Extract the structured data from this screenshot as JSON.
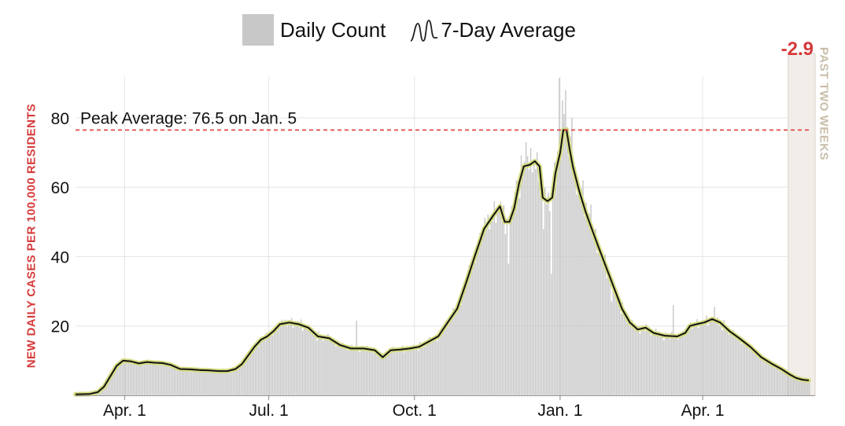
{
  "legend": {
    "daily_label": "Daily Count",
    "average_label": "7-Day Average",
    "daily_color": "#c8c8c8",
    "average_color": "#111111",
    "average_halo_color": "#d6dc84"
  },
  "recent_change": "-2.9",
  "recent_period_label": "PAST TWO WEEKS",
  "colors": {
    "accent_red": "#d63a3a",
    "grid": "#e6e6e6",
    "recent_band": "#f1eeea",
    "recent_band_border": "#d9d2c8"
  },
  "chart_data": {
    "type": "bar",
    "ylabel": "NEW DAILY CASES PER 100,000 RESIDENTS",
    "ylim": [
      0,
      92
    ],
    "y_ticks": [
      20,
      40,
      60,
      80
    ],
    "x_range": [
      "2020-03-01",
      "2021-06-08"
    ],
    "x_ticks": [
      {
        "date": "2020-04-01",
        "label": "Apr. 1"
      },
      {
        "date": "2020-07-01",
        "label": "Jul. 1"
      },
      {
        "date": "2020-10-01",
        "label": "Oct. 1"
      },
      {
        "date": "2021-01-01",
        "label": "Jan. 1"
      },
      {
        "date": "2021-04-01",
        "label": "Apr. 1"
      }
    ],
    "grid": true,
    "legend_position": "top-center",
    "series": [
      {
        "name": "7-Day Average",
        "kind": "line",
        "points": [
          [
            "2020-03-01",
            0.3
          ],
          [
            "2020-03-10",
            0.4
          ],
          [
            "2020-03-15",
            0.9
          ],
          [
            "2020-03-19",
            2.5
          ],
          [
            "2020-03-23",
            5.5
          ],
          [
            "2020-03-27",
            8.5
          ],
          [
            "2020-03-31",
            10.0
          ],
          [
            "2020-04-05",
            9.8
          ],
          [
            "2020-04-10",
            9.2
          ],
          [
            "2020-04-15",
            9.6
          ],
          [
            "2020-04-20",
            9.4
          ],
          [
            "2020-04-25",
            9.3
          ],
          [
            "2020-04-30",
            8.8
          ],
          [
            "2020-05-06",
            7.6
          ],
          [
            "2020-05-12",
            7.5
          ],
          [
            "2020-05-18",
            7.3
          ],
          [
            "2020-05-24",
            7.2
          ],
          [
            "2020-05-30",
            7.0
          ],
          [
            "2020-06-05",
            7.0
          ],
          [
            "2020-06-10",
            7.6
          ],
          [
            "2020-06-14",
            9.0
          ],
          [
            "2020-06-18",
            11.5
          ],
          [
            "2020-06-22",
            14.0
          ],
          [
            "2020-06-26",
            16.0
          ],
          [
            "2020-06-30",
            17.0
          ],
          [
            "2020-07-04",
            18.5
          ],
          [
            "2020-07-08",
            20.5
          ],
          [
            "2020-07-14",
            21.0
          ],
          [
            "2020-07-20",
            20.5
          ],
          [
            "2020-07-26",
            19.5
          ],
          [
            "2020-08-01",
            17.0
          ],
          [
            "2020-08-08",
            16.5
          ],
          [
            "2020-08-15",
            14.5
          ],
          [
            "2020-08-22",
            13.5
          ],
          [
            "2020-08-30",
            13.5
          ],
          [
            "2020-09-06",
            13.0
          ],
          [
            "2020-09-11",
            11.0
          ],
          [
            "2020-09-16",
            13.0
          ],
          [
            "2020-09-22",
            13.2
          ],
          [
            "2020-09-28",
            13.5
          ],
          [
            "2020-10-04",
            14.0
          ],
          [
            "2020-10-10",
            15.5
          ],
          [
            "2020-10-16",
            17.0
          ],
          [
            "2020-10-22",
            21.0
          ],
          [
            "2020-10-28",
            25.0
          ],
          [
            "2020-11-03",
            33.0
          ],
          [
            "2020-11-08",
            40.0
          ],
          [
            "2020-11-14",
            48.0
          ],
          [
            "2020-11-20",
            52.0
          ],
          [
            "2020-11-24",
            54.5
          ],
          [
            "2020-11-27",
            50.0
          ],
          [
            "2020-11-30",
            50.0
          ],
          [
            "2020-12-03",
            54.0
          ],
          [
            "2020-12-06",
            61.0
          ],
          [
            "2020-12-09",
            66.0
          ],
          [
            "2020-12-13",
            66.5
          ],
          [
            "2020-12-16",
            67.5
          ],
          [
            "2020-12-19",
            66.0
          ],
          [
            "2020-12-21",
            57.0
          ],
          [
            "2020-12-24",
            56.0
          ],
          [
            "2020-12-27",
            57.0
          ],
          [
            "2020-12-29",
            64.0
          ],
          [
            "2021-01-01",
            70.0
          ],
          [
            "2021-01-03",
            76.5
          ],
          [
            "2021-01-05",
            76.5
          ],
          [
            "2021-01-07",
            71.0
          ],
          [
            "2021-01-09",
            66.0
          ],
          [
            "2021-01-13",
            59.0
          ],
          [
            "2021-01-17",
            53.0
          ],
          [
            "2021-01-21",
            48.0
          ],
          [
            "2021-01-25",
            43.0
          ],
          [
            "2021-01-30",
            37.0
          ],
          [
            "2021-02-04",
            31.0
          ],
          [
            "2021-02-09",
            25.0
          ],
          [
            "2021-02-14",
            21.0
          ],
          [
            "2021-02-19",
            19.0
          ],
          [
            "2021-02-24",
            19.5
          ],
          [
            "2021-03-01",
            18.0
          ],
          [
            "2021-03-08",
            17.2
          ],
          [
            "2021-03-16",
            17.0
          ],
          [
            "2021-03-21",
            18.0
          ],
          [
            "2021-03-24",
            20.0
          ],
          [
            "2021-03-28",
            20.5
          ],
          [
            "2021-04-02",
            21.0
          ],
          [
            "2021-04-07",
            22.0
          ],
          [
            "2021-04-12",
            21.0
          ],
          [
            "2021-04-18",
            18.5
          ],
          [
            "2021-04-24",
            16.5
          ],
          [
            "2021-05-01",
            14.0
          ],
          [
            "2021-05-08",
            11.0
          ],
          [
            "2021-05-15",
            9.0
          ],
          [
            "2021-05-21",
            7.5
          ],
          [
            "2021-05-26",
            6.0
          ],
          [
            "2021-05-30",
            5.0
          ],
          [
            "2021-06-03",
            4.5
          ],
          [
            "2021-06-07",
            4.3
          ]
        ]
      },
      {
        "name": "Daily Count",
        "kind": "bars",
        "daily_deviation_pct": [
          3,
          -4,
          6,
          -2,
          5,
          -5,
          2,
          -3,
          7,
          -6,
          1,
          -1,
          4,
          -4,
          8,
          -7,
          2,
          0,
          -2,
          5,
          -3,
          6,
          -5,
          3,
          -8,
          9,
          -1,
          2,
          -6,
          4,
          -2,
          7,
          -4,
          1,
          -3,
          5,
          -7,
          3,
          0,
          -5,
          6,
          -2,
          4,
          -6,
          2,
          -1,
          8,
          -3,
          5,
          -4,
          1,
          -8,
          6,
          -2,
          3,
          -5,
          7,
          0,
          -3,
          4,
          -6,
          2,
          -1,
          5
        ],
        "spikes": [
          {
            "date": "2020-08-25",
            "value": 21.5
          },
          {
            "date": "2020-11-29",
            "value": 38.0
          },
          {
            "date": "2020-12-04",
            "value": 62.0
          },
          {
            "date": "2020-12-10",
            "value": 73.0
          },
          {
            "date": "2020-12-21",
            "value": 48.0
          },
          {
            "date": "2020-12-26",
            "value": 35.0
          },
          {
            "date": "2020-12-31",
            "value": 91.5
          },
          {
            "date": "2021-01-02",
            "value": 85.0
          },
          {
            "date": "2021-01-04",
            "value": 88.0
          },
          {
            "date": "2021-01-08",
            "value": 80.0
          },
          {
            "date": "2021-01-15",
            "value": 62.0
          },
          {
            "date": "2021-01-20",
            "value": 55.0
          },
          {
            "date": "2021-02-02",
            "value": 27.0
          },
          {
            "date": "2021-03-13",
            "value": 26.0
          },
          {
            "date": "2021-04-08",
            "value": 25.5
          }
        ]
      }
    ],
    "annotations": [
      {
        "text": "Peak Average: 76.5 on Jan. 5",
        "y": 76.5,
        "style": "dashed",
        "color": "#e03c3c"
      }
    ],
    "recent_window": {
      "start": "2021-05-25",
      "end": "2021-06-08"
    }
  }
}
